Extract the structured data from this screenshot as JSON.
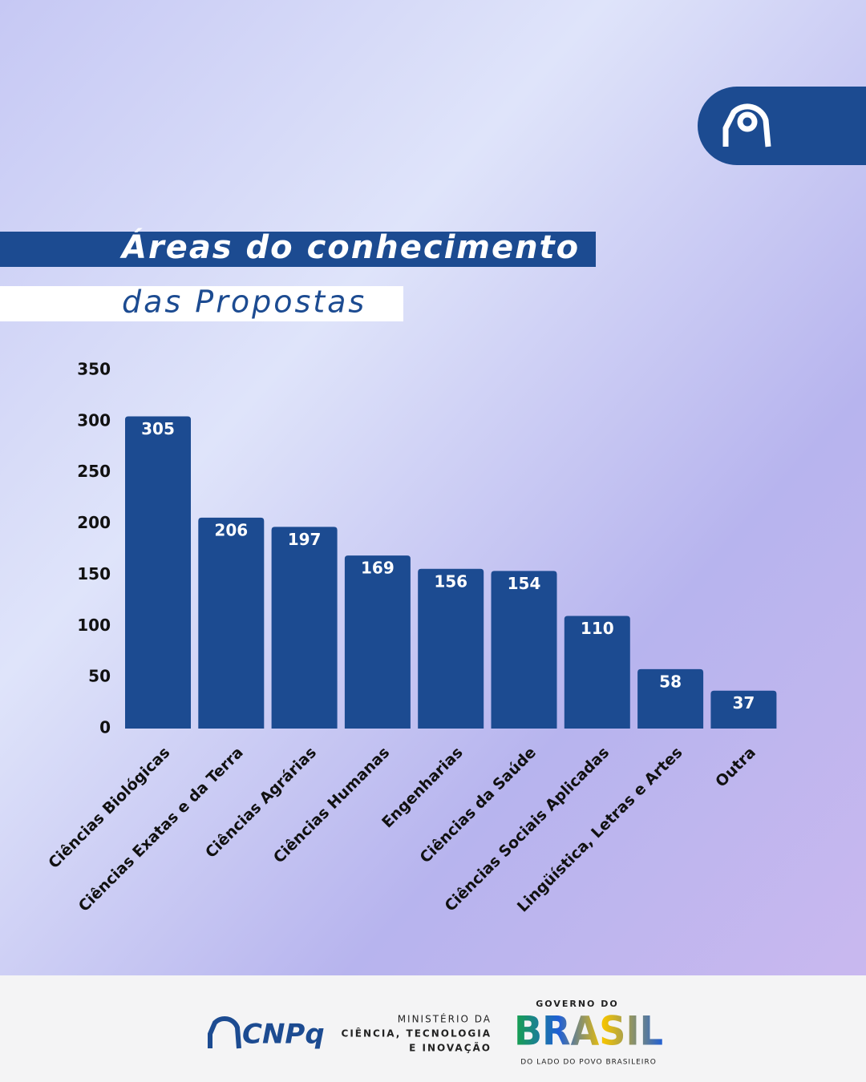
{
  "chart_data": {
    "type": "bar",
    "title": "Áreas do conhecimento",
    "subtitle": "das Propostas",
    "categories": [
      "Ciências Biológicas",
      "Ciências Exatas e da Terra",
      "Ciências Agrárias",
      "Ciências Humanas",
      "Engenharias",
      "Ciências da Saúde",
      "Ciências Sociais Aplicadas",
      "Lingüística, Letras e Artes",
      "Outra"
    ],
    "values": [
      305,
      206,
      197,
      169,
      156,
      154,
      110,
      58,
      37
    ],
    "color": "#1c4b91",
    "ylim": [
      0,
      350
    ],
    "yticks": [
      0,
      50,
      100,
      150,
      200,
      250,
      300,
      350
    ],
    "grid": false
  },
  "footer": {
    "cnpq": "CNPq",
    "ministry": [
      "MINISTÉRIO DA",
      "CIÊNCIA, TECNOLOGIA",
      "E INOVAÇÃO"
    ],
    "government": "GOVERNO DO",
    "country": "BRASIL",
    "slogan": "DO LADO DO POVO BRASILEIRO"
  }
}
